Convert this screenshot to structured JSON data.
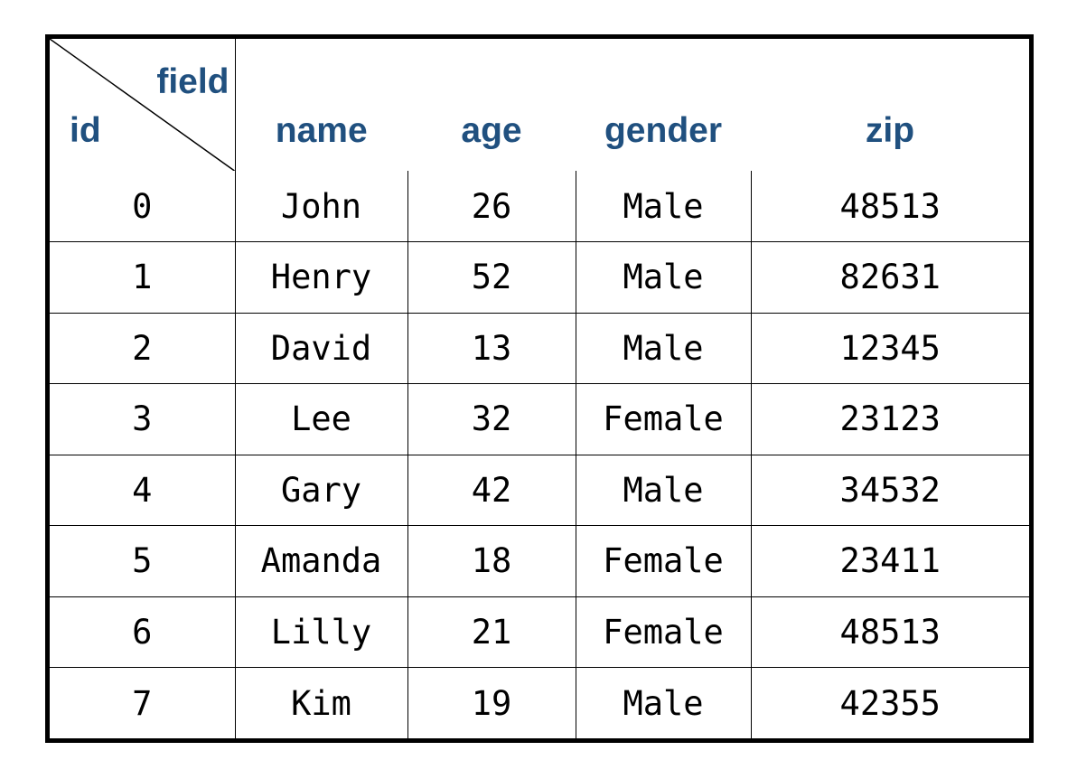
{
  "table": {
    "corner": {
      "field_label": "field",
      "id_label": "id"
    },
    "columns": [
      "name",
      "age",
      "gender",
      "zip"
    ],
    "rows": [
      {
        "id": "0",
        "name": "John",
        "age": "26",
        "gender": "Male",
        "zip": "48513"
      },
      {
        "id": "1",
        "name": "Henry",
        "age": "52",
        "gender": "Male",
        "zip": "82631"
      },
      {
        "id": "2",
        "name": "David",
        "age": "13",
        "gender": "Male",
        "zip": "12345"
      },
      {
        "id": "3",
        "name": "Lee",
        "age": "32",
        "gender": "Female",
        "zip": "23123"
      },
      {
        "id": "4",
        "name": "Gary",
        "age": "42",
        "gender": "Male",
        "zip": "34532"
      },
      {
        "id": "5",
        "name": "Amanda",
        "age": "18",
        "gender": "Female",
        "zip": "23411"
      },
      {
        "id": "6",
        "name": "Lilly",
        "age": "21",
        "gender": "Female",
        "zip": "48513"
      },
      {
        "id": "7",
        "name": "Kim",
        "age": "19",
        "gender": "Male",
        "zip": "42355"
      }
    ],
    "header_color": "#20507f",
    "border_color": "#000000"
  }
}
